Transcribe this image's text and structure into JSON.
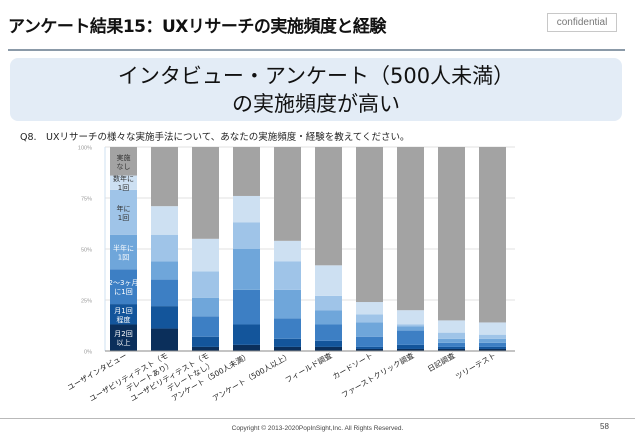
{
  "header": {
    "title": "アンケート結果15：UXリサーチの実施頻度と経験",
    "badge": "confidential"
  },
  "banner": {
    "line1": "インタビュー・アンケート（500人未満）",
    "line2": "の実施頻度が高い"
  },
  "question": "Q8.　UXリサーチの様々な実施手法について、あなたの実施頻度・経験を教えてください。",
  "footer": {
    "copyright": "Copyright © 2013-2020PopInSight,Inc.  All Rights Reserved.",
    "page": "58"
  },
  "chart_data": {
    "type": "bar",
    "stacked": true,
    "percent": true,
    "title": "",
    "xlabel": "",
    "ylabel": "",
    "ylim": [
      0,
      100
    ],
    "yticks": [
      "0%",
      "25%",
      "50%",
      "75%",
      "100%"
    ],
    "grid": true,
    "legend_placement": "inside-first-bar",
    "categories": [
      "ユーザインタビュー",
      "ユーザビリティテスト（モデレートあり）",
      "ユーザビリティテスト（モデレートなし）",
      "アンケート（500人未満）",
      "アンケート（500人以上）",
      "フィールド調査",
      "カードソート",
      "ファーストクリック調査",
      "日記調査",
      "ツリーテスト"
    ],
    "category_label_lines": [
      [
        "ユーザインタビュー"
      ],
      [
        "ユーザビリティテスト（モ",
        "デレートあり）"
      ],
      [
        "ユーザビリティテスト（モ",
        "デレートなし）"
      ],
      [
        "アンケート（500人未満）"
      ],
      [
        "アンケート（500人以上）"
      ],
      [
        "フィールド調査"
      ],
      [
        "カードソート"
      ],
      [
        "ファーストクリック調査"
      ],
      [
        "日記調査"
      ],
      [
        "ツリーテスト"
      ]
    ],
    "series": [
      {
        "name": "月2回以上",
        "label_lines": [
          "月2回",
          "以上"
        ],
        "color": "#0b2f5b",
        "values": [
          13,
          11,
          2,
          3,
          2,
          2,
          1,
          1,
          1,
          1
        ]
      },
      {
        "name": "月1回程度",
        "label_lines": [
          "月1回",
          "程度"
        ],
        "color": "#13559b",
        "values": [
          10,
          11,
          5,
          10,
          4,
          3,
          1,
          2,
          1,
          1
        ]
      },
      {
        "name": "2〜3ヶ月に1回",
        "label_lines": [
          "2〜3ヶ月",
          "に1回"
        ],
        "color": "#3d7fc4",
        "values": [
          17,
          13,
          10,
          17,
          10,
          8,
          5,
          7,
          2,
          2
        ]
      },
      {
        "name": "半年に1回",
        "label_lines": [
          "半年に",
          "1回"
        ],
        "color": "#6fa6da",
        "values": [
          17,
          9,
          9,
          20,
          14,
          7,
          7,
          2,
          2,
          2
        ]
      },
      {
        "name": "年に1回",
        "label_lines": [
          "年に",
          "1回"
        ],
        "color": "#9fc4e8",
        "values": [
          22,
          13,
          13,
          13,
          14,
          7,
          4,
          1,
          3,
          2
        ]
      },
      {
        "name": "数年に1回",
        "label_lines": [
          "数年に",
          "1回"
        ],
        "color": "#cde0f2",
        "values": [
          7,
          14,
          16,
          13,
          10,
          15,
          6,
          7,
          6,
          6
        ]
      },
      {
        "name": "実施なし",
        "label_lines": [
          "実施",
          "なし"
        ],
        "color": "#a3a3a3",
        "values": [
          14,
          29,
          45,
          24,
          46,
          58,
          76,
          80,
          85,
          86
        ]
      }
    ]
  }
}
